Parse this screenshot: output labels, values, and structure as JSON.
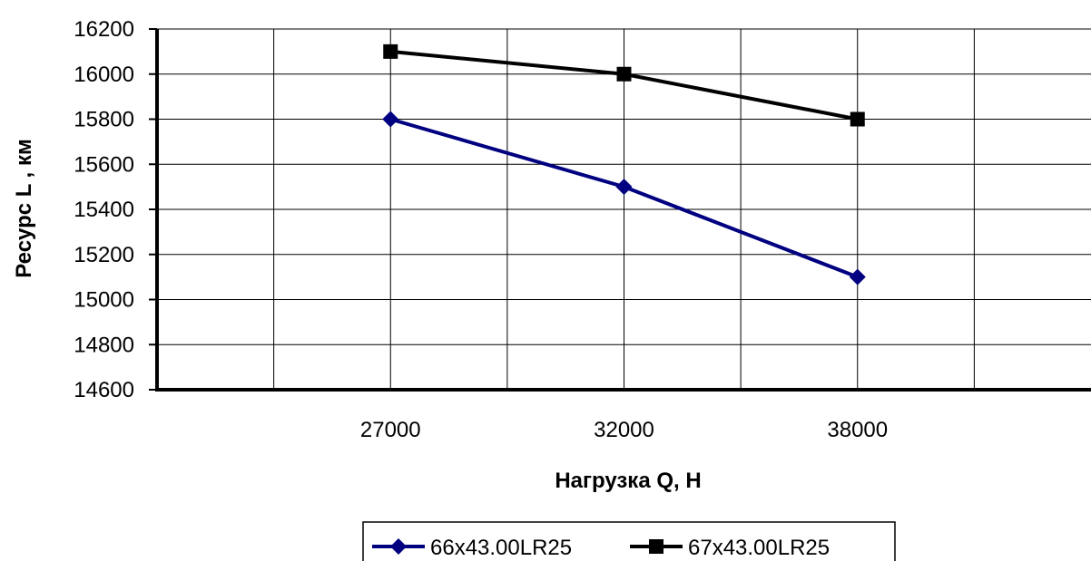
{
  "chart_data": {
    "type": "line",
    "title": "",
    "xlabel": "Нагрузка Q, Н",
    "ylabel": "Ресурс L , км",
    "categories": [
      "27000",
      "32000",
      "38000"
    ],
    "ylim": [
      14600,
      16200
    ],
    "yticks": [
      14600,
      14800,
      15000,
      15200,
      15400,
      15600,
      15800,
      16000,
      16200
    ],
    "grid": true,
    "legend_position": "bottom",
    "series": [
      {
        "name": "66x43.00LR25",
        "values": [
          15800,
          15500,
          15100
        ],
        "color": "#000080",
        "marker": "diamond"
      },
      {
        "name": "67x43.00LR25",
        "values": [
          16100,
          16000,
          15800
        ],
        "color": "#000000",
        "marker": "square"
      }
    ]
  }
}
